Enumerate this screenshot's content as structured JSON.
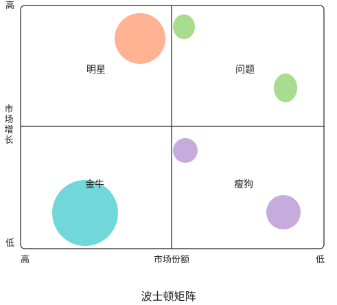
{
  "y_axis": {
    "label": "市场增长",
    "high": "高",
    "low": "低"
  },
  "x_axis": {
    "label": "市场份额",
    "high": "高",
    "low": "低"
  },
  "quadrants": {
    "top_left": "明星",
    "top_right": "问题",
    "bottom_left": "金牛",
    "bottom_right": "瘦狗"
  },
  "caption": "波士顿矩阵",
  "colors": {
    "star": "#ffb392",
    "question": "#a8dc8e",
    "cash_cow": "#72d7d9",
    "dog": "#c7abdd",
    "frame": "#222222"
  },
  "bubbles": [
    {
      "name": "star-bubble",
      "quadrant": "top_left",
      "color_key": "star"
    },
    {
      "name": "question-bubble-small",
      "quadrant": "top_right",
      "color_key": "question"
    },
    {
      "name": "question-bubble-large",
      "quadrant": "top_right",
      "color_key": "question"
    },
    {
      "name": "dog-bubble-small",
      "quadrant": "bottom_right",
      "color_key": "dog"
    },
    {
      "name": "dog-bubble-large",
      "quadrant": "bottom_right",
      "color_key": "dog"
    },
    {
      "name": "cash-cow-bubble",
      "quadrant": "bottom_left",
      "color_key": "cash_cow"
    }
  ]
}
